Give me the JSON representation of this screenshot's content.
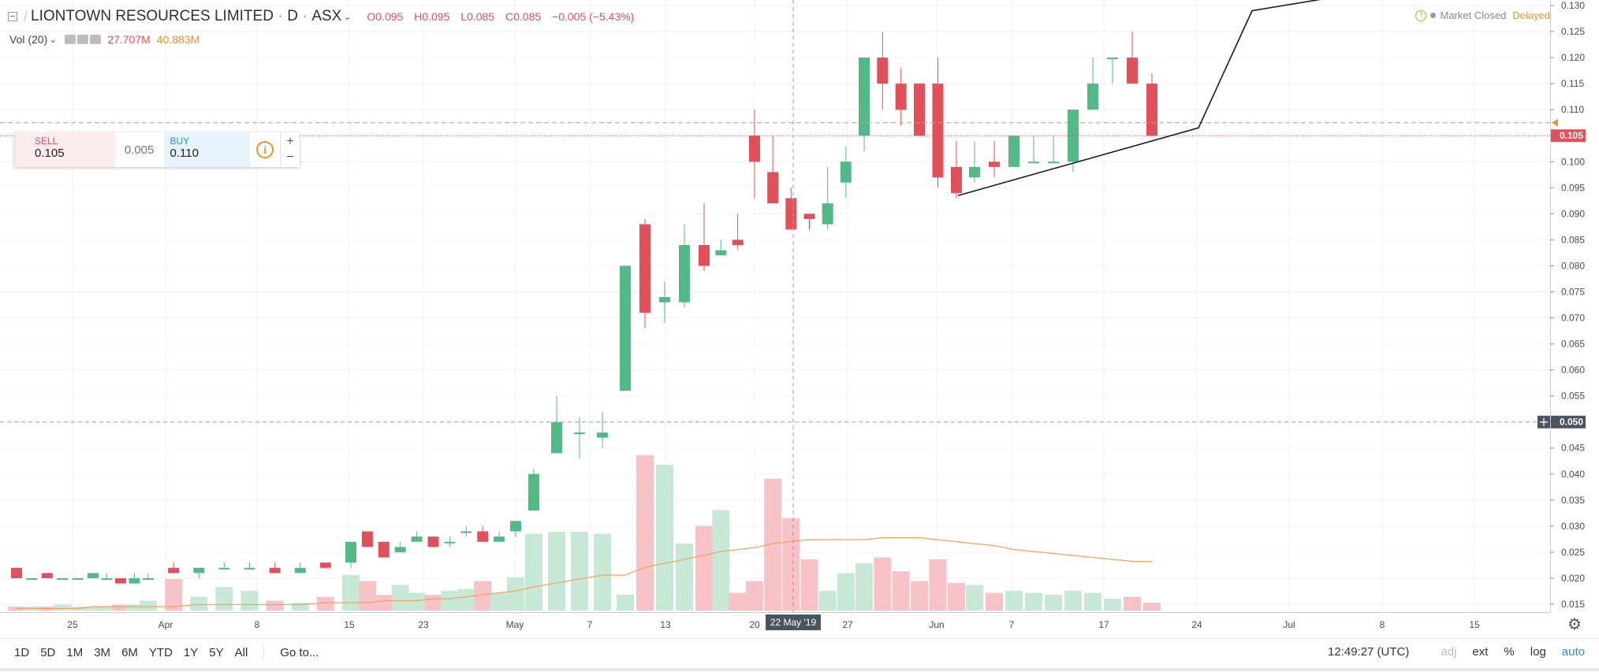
{
  "header": {
    "symbol": "LIONTOWN RESOURCES LIMITED",
    "interval": "D",
    "exchange": "ASX",
    "open": "O0.095",
    "high": "H0.095",
    "low": "L0.085",
    "close": "C0.085",
    "change": "−0.005 (−5.43%)"
  },
  "volume_legend": {
    "label": "Vol (20)",
    "value": "27.707M",
    "ma_value": "40.883M"
  },
  "status": {
    "market": "Market Closed",
    "delayed": "Delayed"
  },
  "trade_widget": {
    "sell_label": "SELL",
    "sell_price": "0.105",
    "spread": "0.005",
    "buy_label": "BUY",
    "buy_price": "0.110",
    "info_icon": "i",
    "plus": "+",
    "minus": "−"
  },
  "crosshair": {
    "date_label": "22 May '19",
    "price_label": "0.050"
  },
  "last_price_label": "0.105",
  "bottom_toolbar": {
    "timeframes": [
      "1D",
      "5D",
      "1M",
      "3M",
      "6M",
      "YTD",
      "1Y",
      "5Y",
      "All"
    ],
    "goto": "Go to...",
    "time": "12:49:27 (UTC)",
    "adj": "adj",
    "ext": "ext",
    "percent": "%",
    "log": "log",
    "auto": "auto"
  },
  "colors": {
    "up": "#53b987",
    "down": "#e0515c",
    "volume_up": "#c7e8d6",
    "volume_down": "#f7c3c7",
    "volume_ma": "#f0a35e",
    "last_price": "#e0515c"
  },
  "chart_data": {
    "type": "candlestick",
    "yticks": [
      "0.015",
      "0.020",
      "0.025",
      "0.030",
      "0.035",
      "0.040",
      "0.045",
      "0.050",
      "0.055",
      "0.060",
      "0.065",
      "0.070",
      "0.075",
      "0.080",
      "0.085",
      "0.090",
      "0.095",
      "0.100",
      "0.105",
      "0.110",
      "0.115",
      "0.120",
      "0.125",
      "0.130"
    ],
    "xticks": [
      "25",
      "Apr",
      "8",
      "15",
      "23",
      "May",
      "7",
      "13",
      "20",
      "27",
      "Jun",
      "7",
      "17",
      "24",
      "Jul",
      "8",
      "15"
    ],
    "ylim": [
      0.0125,
      0.131
    ],
    "candles": [
      {
        "o": 0.022,
        "h": 0.022,
        "l": 0.02,
        "c": 0.02
      },
      {
        "o": 0.02,
        "h": 0.02,
        "l": 0.02,
        "c": 0.02
      },
      {
        "o": 0.021,
        "h": 0.021,
        "l": 0.02,
        "c": 0.02
      },
      {
        "o": 0.02,
        "h": 0.02,
        "l": 0.02,
        "c": 0.02
      },
      {
        "o": 0.02,
        "h": 0.02,
        "l": 0.02,
        "c": 0.02
      },
      {
        "o": 0.02,
        "h": 0.021,
        "l": 0.02,
        "c": 0.021
      },
      {
        "o": 0.02,
        "h": 0.021,
        "l": 0.02,
        "c": 0.02
      },
      {
        "o": 0.02,
        "h": 0.02,
        "l": 0.019,
        "c": 0.019
      },
      {
        "o": 0.019,
        "h": 0.021,
        "l": 0.019,
        "c": 0.02
      },
      {
        "o": 0.02,
        "h": 0.021,
        "l": 0.02,
        "c": 0.02
      },
      {
        "o": 0.022,
        "h": 0.023,
        "l": 0.021,
        "c": 0.021
      },
      {
        "o": 0.021,
        "h": 0.022,
        "l": 0.02,
        "c": 0.022
      },
      {
        "o": 0.022,
        "h": 0.023,
        "l": 0.022,
        "c": 0.022
      },
      {
        "o": 0.022,
        "h": 0.023,
        "l": 0.022,
        "c": 0.022
      },
      {
        "o": 0.022,
        "h": 0.023,
        "l": 0.021,
        "c": 0.021
      },
      {
        "o": 0.021,
        "h": 0.023,
        "l": 0.021,
        "c": 0.022
      },
      {
        "o": 0.023,
        "h": 0.023,
        "l": 0.022,
        "c": 0.022
      },
      {
        "o": 0.023,
        "h": 0.027,
        "l": 0.022,
        "c": 0.027
      },
      {
        "o": 0.029,
        "h": 0.029,
        "l": 0.026,
        "c": 0.026
      },
      {
        "o": 0.027,
        "h": 0.027,
        "l": 0.024,
        "c": 0.024
      },
      {
        "o": 0.025,
        "h": 0.027,
        "l": 0.025,
        "c": 0.026
      },
      {
        "o": 0.027,
        "h": 0.029,
        "l": 0.027,
        "c": 0.028
      },
      {
        "o": 0.028,
        "h": 0.028,
        "l": 0.026,
        "c": 0.026
      },
      {
        "o": 0.027,
        "h": 0.028,
        "l": 0.026,
        "c": 0.027
      },
      {
        "o": 0.029,
        "h": 0.03,
        "l": 0.028,
        "c": 0.029
      },
      {
        "o": 0.029,
        "h": 0.03,
        "l": 0.027,
        "c": 0.027
      },
      {
        "o": 0.027,
        "h": 0.029,
        "l": 0.027,
        "c": 0.028
      },
      {
        "o": 0.029,
        "h": 0.031,
        "l": 0.028,
        "c": 0.031
      },
      {
        "o": 0.033,
        "h": 0.041,
        "l": 0.033,
        "c": 0.04
      },
      {
        "o": 0.044,
        "h": 0.055,
        "l": 0.044,
        "c": 0.05
      },
      {
        "o": 0.048,
        "h": 0.051,
        "l": 0.043,
        "c": 0.048
      },
      {
        "o": 0.047,
        "h": 0.052,
        "l": 0.045,
        "c": 0.048
      },
      {
        "o": 0.056,
        "h": 0.08,
        "l": 0.056,
        "c": 0.08
      },
      {
        "o": 0.088,
        "h": 0.089,
        "l": 0.068,
        "c": 0.071
      },
      {
        "o": 0.073,
        "h": 0.077,
        "l": 0.069,
        "c": 0.074
      },
      {
        "o": 0.073,
        "h": 0.088,
        "l": 0.072,
        "c": 0.084
      },
      {
        "o": 0.084,
        "h": 0.092,
        "l": 0.079,
        "c": 0.08
      },
      {
        "o": 0.082,
        "h": 0.085,
        "l": 0.082,
        "c": 0.083
      },
      {
        "o": 0.085,
        "h": 0.09,
        "l": 0.083,
        "c": 0.084
      },
      {
        "o": 0.105,
        "h": 0.11,
        "l": 0.093,
        "c": 0.1
      },
      {
        "o": 0.098,
        "h": 0.105,
        "l": 0.092,
        "c": 0.092
      },
      {
        "o": 0.093,
        "h": 0.095,
        "l": 0.087,
        "c": 0.087
      },
      {
        "o": 0.09,
        "h": 0.09,
        "l": 0.087,
        "c": 0.089
      },
      {
        "o": 0.088,
        "h": 0.099,
        "l": 0.087,
        "c": 0.092
      },
      {
        "o": 0.096,
        "h": 0.103,
        "l": 0.093,
        "c": 0.1
      },
      {
        "o": 0.105,
        "h": 0.12,
        "l": 0.102,
        "c": 0.12
      },
      {
        "o": 0.12,
        "h": 0.125,
        "l": 0.11,
        "c": 0.115
      },
      {
        "o": 0.115,
        "h": 0.118,
        "l": 0.107,
        "c": 0.11
      },
      {
        "o": 0.115,
        "h": 0.115,
        "l": 0.105,
        "c": 0.105
      },
      {
        "o": 0.115,
        "h": 0.12,
        "l": 0.095,
        "c": 0.097
      },
      {
        "o": 0.099,
        "h": 0.104,
        "l": 0.093,
        "c": 0.094
      },
      {
        "o": 0.097,
        "h": 0.104,
        "l": 0.096,
        "c": 0.099
      },
      {
        "o": 0.1,
        "h": 0.104,
        "l": 0.097,
        "c": 0.099
      },
      {
        "o": 0.099,
        "h": 0.105,
        "l": 0.099,
        "c": 0.105
      },
      {
        "o": 0.1,
        "h": 0.105,
        "l": 0.1,
        "c": 0.1
      },
      {
        "o": 0.1,
        "h": 0.105,
        "l": 0.1,
        "c": 0.1
      },
      {
        "o": 0.1,
        "h": 0.11,
        "l": 0.098,
        "c": 0.11
      },
      {
        "o": 0.11,
        "h": 0.12,
        "l": 0.11,
        "c": 0.115
      },
      {
        "o": 0.12,
        "h": 0.12,
        "l": 0.115,
        "c": 0.12
      },
      {
        "o": 0.12,
        "h": 0.125,
        "l": 0.115,
        "c": 0.115
      },
      {
        "o": 0.115,
        "h": 0.117,
        "l": 0.105,
        "c": 0.105
      }
    ],
    "volume": [
      2,
      2,
      2,
      3,
      2,
      2,
      2,
      3,
      3,
      5,
      16,
      7,
      12,
      10,
      5,
      4,
      7,
      18,
      15,
      8,
      13,
      9,
      8,
      10,
      11,
      15,
      9,
      17,
      39,
      40,
      40,
      39,
      8,
      79,
      74,
      34,
      43,
      51,
      9,
      15,
      67,
      47,
      26,
      10,
      19,
      24,
      27,
      20,
      15,
      26,
      14,
      13,
      9,
      10,
      9,
      8,
      10,
      9,
      6,
      7,
      4
    ],
    "volume_ma": [
      1,
      1,
      1,
      1,
      1,
      2,
      2,
      2,
      2,
      2,
      2,
      3,
      3,
      3,
      3,
      3,
      4,
      4,
      4,
      5,
      5,
      5,
      6,
      6,
      7,
      8,
      9,
      10,
      12,
      14,
      16,
      18,
      18,
      22,
      24,
      26,
      28,
      30,
      31,
      32,
      34,
      35,
      36,
      36,
      36,
      36,
      37,
      37,
      37,
      36,
      35,
      34,
      33,
      31,
      30,
      29,
      28,
      27,
      26,
      25,
      25
    ]
  }
}
